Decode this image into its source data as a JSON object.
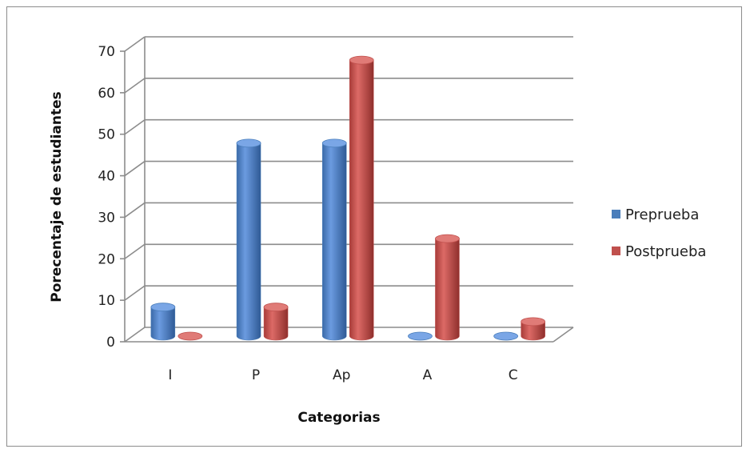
{
  "chart_data": {
    "type": "bar",
    "categories": [
      "I",
      "P",
      "Ap",
      "A",
      "C"
    ],
    "series": [
      {
        "name": "Preprueba",
        "values": [
          7,
          46.5,
          46.5,
          0,
          0
        ],
        "color": "#4a7ebb"
      },
      {
        "name": "Postprueba",
        "values": [
          0,
          7,
          66.5,
          23.5,
          3.5
        ],
        "color": "#c0504d"
      }
    ],
    "xlabel": "Categorias",
    "ylabel": "Porecentaje  de estudiantes",
    "ylim": [
      0,
      70
    ],
    "yticks": [
      0,
      10,
      20,
      30,
      40,
      50,
      60,
      70
    ],
    "grid": true,
    "legend": "right"
  }
}
